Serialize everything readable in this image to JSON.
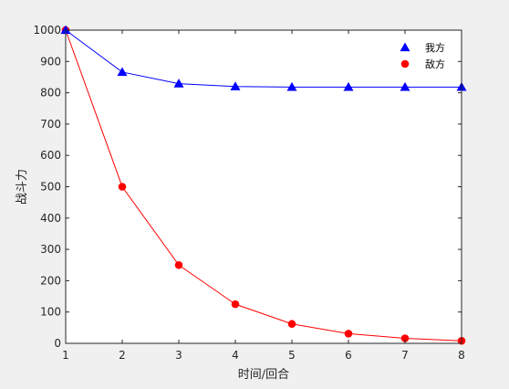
{
  "chart_data": {
    "type": "line",
    "title": "",
    "xlabel": "时间/回合",
    "ylabel": "战斗力",
    "x": [
      1,
      2,
      3,
      4,
      5,
      6,
      7,
      8
    ],
    "xlim": [
      1,
      8
    ],
    "ylim": [
      0,
      1000
    ],
    "xticks": [
      1,
      2,
      3,
      4,
      5,
      6,
      7,
      8
    ],
    "yticks": [
      0,
      100,
      200,
      300,
      400,
      500,
      600,
      700,
      800,
      900,
      1000
    ],
    "grid": false,
    "legend_position": "top-right",
    "series": [
      {
        "name": "我方",
        "color": "#0000ff",
        "marker": "triangle",
        "values": [
          1000,
          866,
          829,
          820,
          818,
          818,
          818,
          818
        ]
      },
      {
        "name": "敌方",
        "color": "#ff0000",
        "marker": "circle",
        "values": [
          1000,
          500,
          250,
          125,
          62,
          31,
          16,
          8
        ]
      }
    ]
  }
}
